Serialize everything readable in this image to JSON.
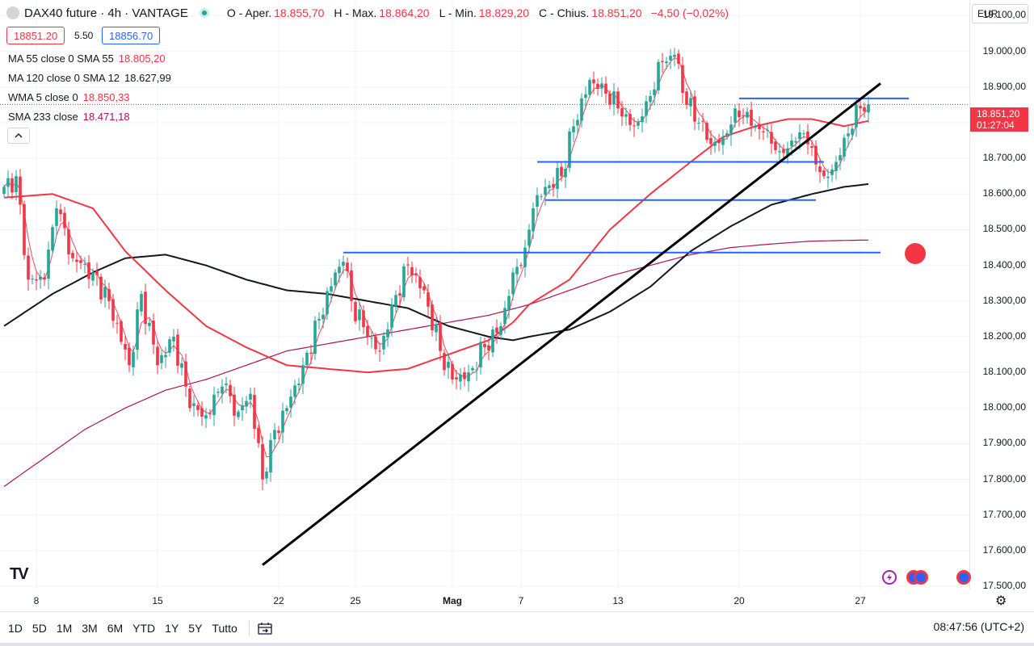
{
  "header": {
    "symbol": "DAX40 future · 4h · VANTAGE",
    "ohlc": [
      {
        "label": "O - Aper.",
        "value": "18.855,70"
      },
      {
        "label": "H - Max.",
        "value": "18.864,20"
      },
      {
        "label": "L - Min.",
        "value": "18.829,20"
      },
      {
        "label": "C - Chius.",
        "value": "18.851,20"
      }
    ],
    "change": "−4,50 (−0,02%)"
  },
  "quote": {
    "bid": "18851.20",
    "spread": "5.50",
    "ask": "18856.70"
  },
  "indicators": [
    {
      "name": "MA 55 close 0 SMA 55",
      "value": "18.805,20",
      "color": "#f23645"
    },
    {
      "name": "MA 120 close 0 SMA 12",
      "value": "18.627,99",
      "color": "#131722"
    },
    {
      "name": "WMA 5 close 0",
      "value": "18.850,33",
      "color": "#f23645"
    },
    {
      "name": "SMA 233 close",
      "value": "18.471,18",
      "color": "#ad1457"
    }
  ],
  "collapse_icon": "chevron-up-icon",
  "currency": "EUR",
  "last_price": {
    "price": "18.851,20",
    "countdown": "01:27:04"
  },
  "toolbar": {
    "timeframes": [
      "1D",
      "5D",
      "1M",
      "3M",
      "6M",
      "YTD",
      "1Y",
      "5Y",
      "Tutto"
    ],
    "date_range_icon": "calendar-range-icon",
    "clock": "08:47:56 (UTC+2)"
  },
  "logo": "TV",
  "chart_data": {
    "type": "candlestick",
    "instrument": "DAX40 future",
    "timeframe": "4h",
    "x_ticks": [
      {
        "label": "8",
        "i": 8
      },
      {
        "label": "15",
        "i": 38
      },
      {
        "label": "22",
        "i": 68
      },
      {
        "label": "25",
        "i": 87
      },
      {
        "label": "Mag",
        "i": 111
      },
      {
        "label": "7",
        "i": 128
      },
      {
        "label": "13",
        "i": 152
      },
      {
        "label": "20",
        "i": 182
      },
      {
        "label": "27",
        "i": 212
      }
    ],
    "y_ticks": [
      17500,
      17600,
      17700,
      17800,
      17900,
      18000,
      18100,
      18200,
      18300,
      18400,
      18500,
      18600,
      18700,
      18800,
      18900,
      19000,
      19100
    ],
    "y_tick_labels": [
      "17.500,00",
      "17.600,00",
      "17.700,00",
      "17.800,00",
      "17.900,00",
      "18.000,00",
      "18.100,00",
      "18.200,00",
      "18.300,00",
      "18.400,00",
      "18.500,00",
      "18.600,00",
      "18.700,00",
      "18.800,00",
      "18.900,00",
      "19.000,00",
      "19.100,00"
    ],
    "ylim": [
      17480,
      19110
    ],
    "colors": {
      "up": "#26a69a",
      "down": "#f23645",
      "ma55": "#f23645",
      "ma120": "#131722",
      "sma233": "#ad1457",
      "hline": "#2962ff",
      "trend": "#000000"
    },
    "anchors": [
      [
        0,
        18620
      ],
      [
        3,
        18650
      ],
      [
        6,
        18360
      ],
      [
        10,
        18360
      ],
      [
        13,
        18560
      ],
      [
        17,
        18420
      ],
      [
        22,
        18380
      ],
      [
        26,
        18300
      ],
      [
        31,
        18120
      ],
      [
        34,
        18320
      ],
      [
        38,
        18120
      ],
      [
        42,
        18200
      ],
      [
        46,
        18000
      ],
      [
        50,
        17980
      ],
      [
        54,
        18060
      ],
      [
        58,
        17990
      ],
      [
        61,
        18040
      ],
      [
        64,
        17800
      ],
      [
        66,
        17910
      ],
      [
        70,
        18000
      ],
      [
        74,
        18120
      ],
      [
        78,
        18250
      ],
      [
        82,
        18380
      ],
      [
        84,
        18410
      ],
      [
        86,
        18300
      ],
      [
        90,
        18200
      ],
      [
        93,
        18160
      ],
      [
        96,
        18290
      ],
      [
        100,
        18400
      ],
      [
        104,
        18330
      ],
      [
        108,
        18160
      ],
      [
        111,
        18080
      ],
      [
        115,
        18100
      ],
      [
        119,
        18170
      ],
      [
        123,
        18230
      ],
      [
        126,
        18380
      ],
      [
        129,
        18450
      ],
      [
        131,
        18560
      ],
      [
        134,
        18620
      ],
      [
        138,
        18650
      ],
      [
        141,
        18790
      ],
      [
        145,
        18920
      ],
      [
        148,
        18910
      ],
      [
        152,
        18840
      ],
      [
        156,
        18790
      ],
      [
        159,
        18860
      ],
      [
        163,
        18970
      ],
      [
        166,
        18990
      ],
      [
        169,
        18850
      ],
      [
        172,
        18800
      ],
      [
        175,
        18740
      ],
      [
        178,
        18760
      ],
      [
        181,
        18840
      ],
      [
        183,
        18820
      ],
      [
        186,
        18790
      ],
      [
        189,
        18780
      ],
      [
        192,
        18720
      ],
      [
        195,
        18750
      ],
      [
        198,
        18770
      ],
      [
        200,
        18730
      ],
      [
        203,
        18650
      ],
      [
        206,
        18690
      ],
      [
        209,
        18770
      ],
      [
        212,
        18840
      ],
      [
        214,
        18851
      ]
    ],
    "ma55": [
      [
        0,
        18590
      ],
      [
        12,
        18600
      ],
      [
        22,
        18560
      ],
      [
        30,
        18440
      ],
      [
        40,
        18330
      ],
      [
        50,
        18230
      ],
      [
        60,
        18170
      ],
      [
        70,
        18120
      ],
      [
        80,
        18110
      ],
      [
        90,
        18100
      ],
      [
        100,
        18110
      ],
      [
        110,
        18150
      ],
      [
        120,
        18190
      ],
      [
        126,
        18240
      ],
      [
        130,
        18290
      ],
      [
        140,
        18360
      ],
      [
        150,
        18500
      ],
      [
        160,
        18600
      ],
      [
        170,
        18690
      ],
      [
        178,
        18760
      ],
      [
        186,
        18790
      ],
      [
        194,
        18810
      ],
      [
        200,
        18810
      ],
      [
        208,
        18790
      ],
      [
        214,
        18805
      ]
    ],
    "ma120": [
      [
        0,
        18230
      ],
      [
        12,
        18320
      ],
      [
        22,
        18380
      ],
      [
        30,
        18420
      ],
      [
        40,
        18430
      ],
      [
        50,
        18400
      ],
      [
        60,
        18360
      ],
      [
        70,
        18330
      ],
      [
        80,
        18320
      ],
      [
        90,
        18300
      ],
      [
        100,
        18280
      ],
      [
        110,
        18230
      ],
      [
        120,
        18200
      ],
      [
        126,
        18190
      ],
      [
        130,
        18200
      ],
      [
        140,
        18220
      ],
      [
        150,
        18270
      ],
      [
        160,
        18340
      ],
      [
        170,
        18440
      ],
      [
        180,
        18510
      ],
      [
        190,
        18570
      ],
      [
        200,
        18600
      ],
      [
        208,
        18620
      ],
      [
        214,
        18628
      ]
    ],
    "sma233": [
      [
        0,
        17780
      ],
      [
        10,
        17860
      ],
      [
        20,
        17940
      ],
      [
        30,
        18000
      ],
      [
        40,
        18050
      ],
      [
        50,
        18080
      ],
      [
        60,
        18120
      ],
      [
        70,
        18160
      ],
      [
        80,
        18180
      ],
      [
        90,
        18200
      ],
      [
        100,
        18220
      ],
      [
        110,
        18240
      ],
      [
        120,
        18260
      ],
      [
        130,
        18290
      ],
      [
        140,
        18330
      ],
      [
        150,
        18370
      ],
      [
        160,
        18400
      ],
      [
        170,
        18430
      ],
      [
        180,
        18450
      ],
      [
        190,
        18460
      ],
      [
        200,
        18468
      ],
      [
        214,
        18471
      ]
    ],
    "trendline": [
      [
        64,
        17560
      ],
      [
        217,
        18910
      ]
    ],
    "hlines": [
      {
        "from": 84,
        "to": 217,
        "value": 18436
      },
      {
        "from": 134,
        "to": 201,
        "value": 18583
      },
      {
        "from": 132,
        "to": 203,
        "value": 18690
      },
      {
        "from": 182,
        "to": 224,
        "value": 18868
      }
    ],
    "current_price": 18851.2,
    "alert_marker": {
      "i": 220,
      "value": 18433
    }
  }
}
